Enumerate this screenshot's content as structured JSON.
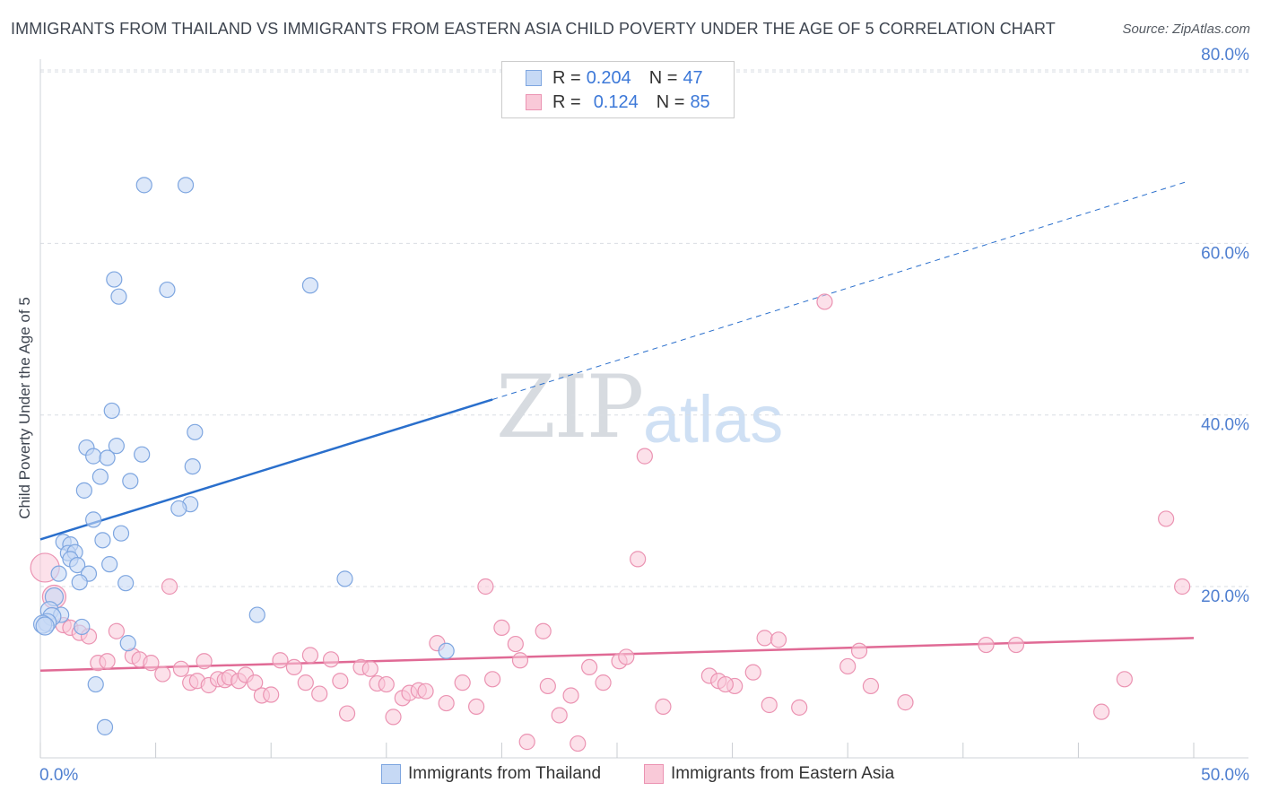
{
  "title": "IMMIGRANTS FROM THAILAND VS IMMIGRANTS FROM EASTERN ASIA CHILD POVERTY UNDER THE AGE OF 5 CORRELATION CHART",
  "source": "Source: ZipAtlas.com",
  "watermark": {
    "zip": "ZIP",
    "atlas": "atlas"
  },
  "legend": {
    "rows": [
      {
        "r_label": "R =",
        "r_value": "0.204",
        "n_label": "N =",
        "n_value": "47"
      },
      {
        "r_label": "R =",
        "r_value": "0.124",
        "n_label": "N =",
        "n_value": "85"
      }
    ]
  },
  "colors": {
    "thailand_fill": "#c6d9f5",
    "thailand_stroke": "#7ea6e0",
    "thailand_line": "#2a6fcc",
    "eastasia_fill": "#f9c9d8",
    "eastasia_stroke": "#eb93b2",
    "eastasia_line": "#e06a95",
    "tick": "#4f7fd0",
    "grid": "#d9dde3"
  },
  "chart_data": {
    "type": "scatter",
    "title": "IMMIGRANTS FROM THAILAND VS IMMIGRANTS FROM EASTERN ASIA CHILD POVERTY UNDER THE AGE OF 5 CORRELATION CHART",
    "xlabel": "",
    "ylabel": "Child Poverty Under the Age of 5",
    "xlim": [
      0,
      50
    ],
    "ylim": [
      0,
      82
    ],
    "x_tick_labels": [
      "0.0%",
      "50.0%"
    ],
    "y_ticks": [
      20,
      40,
      60,
      80
    ],
    "y_tick_labels": [
      "20.0%",
      "40.0%",
      "60.0%",
      "80.0%"
    ],
    "grid": true,
    "legend_position": "top-center",
    "series": [
      {
        "name": "Immigrants from Thailand",
        "r": 0.204,
        "n": 47,
        "trend": {
          "x_solid": [
            0,
            19.6
          ],
          "y_solid": [
            25.5,
            41.8
          ],
          "x_dashed": [
            19.6,
            49.7
          ],
          "y_dashed": [
            41.8,
            67.2
          ]
        },
        "points": [
          [
            4.5,
            66.8
          ],
          [
            6.3,
            66.8
          ],
          [
            3.2,
            55.8
          ],
          [
            3.4,
            53.8
          ],
          [
            5.5,
            54.6
          ],
          [
            11.7,
            55.1
          ],
          [
            3.1,
            40.5
          ],
          [
            6.7,
            38.0
          ],
          [
            2.0,
            36.2
          ],
          [
            3.3,
            36.4
          ],
          [
            2.3,
            35.2
          ],
          [
            2.9,
            35.0
          ],
          [
            4.4,
            35.4
          ],
          [
            6.6,
            34.0
          ],
          [
            2.6,
            32.8
          ],
          [
            3.9,
            32.3
          ],
          [
            1.9,
            31.2
          ],
          [
            6.5,
            29.6
          ],
          [
            6.0,
            29.1
          ],
          [
            2.3,
            27.8
          ],
          [
            3.5,
            26.2
          ],
          [
            2.7,
            25.4
          ],
          [
            1.0,
            25.2
          ],
          [
            1.3,
            24.9
          ],
          [
            1.2,
            23.9
          ],
          [
            1.5,
            24.0
          ],
          [
            1.3,
            23.2
          ],
          [
            1.6,
            22.5
          ],
          [
            3.0,
            22.6
          ],
          [
            0.8,
            21.5
          ],
          [
            2.1,
            21.5
          ],
          [
            1.7,
            20.5
          ],
          [
            3.7,
            20.4
          ],
          [
            13.2,
            20.9
          ],
          [
            0.6,
            18.8
          ],
          [
            0.4,
            17.2
          ],
          [
            0.9,
            16.7
          ],
          [
            0.5,
            16.5
          ],
          [
            0.3,
            15.8
          ],
          [
            9.4,
            16.7
          ],
          [
            0.1,
            15.6
          ],
          [
            0.2,
            15.4
          ],
          [
            1.8,
            15.3
          ],
          [
            3.8,
            13.4
          ],
          [
            17.6,
            12.5
          ],
          [
            2.4,
            8.6
          ],
          [
            2.8,
            3.6
          ]
        ]
      },
      {
        "name": "Immigrants from Eastern Asia",
        "r": 0.124,
        "n": 85,
        "trend": {
          "x": [
            0,
            50
          ],
          "y": [
            10.2,
            14.0
          ]
        },
        "points": [
          [
            0.2,
            22.2
          ],
          [
            0.6,
            18.8
          ],
          [
            1.0,
            15.5
          ],
          [
            1.3,
            15.2
          ],
          [
            1.7,
            14.6
          ],
          [
            2.1,
            14.2
          ],
          [
            3.3,
            14.8
          ],
          [
            2.5,
            11.1
          ],
          [
            2.9,
            11.3
          ],
          [
            4.0,
            11.9
          ],
          [
            4.3,
            11.5
          ],
          [
            4.8,
            11.1
          ],
          [
            5.3,
            9.8
          ],
          [
            5.6,
            20.0
          ],
          [
            6.1,
            10.4
          ],
          [
            6.5,
            8.8
          ],
          [
            6.8,
            9.0
          ],
          [
            7.1,
            11.3
          ],
          [
            7.3,
            8.5
          ],
          [
            7.7,
            9.2
          ],
          [
            8.0,
            9.1
          ],
          [
            8.2,
            9.4
          ],
          [
            8.6,
            9.0
          ],
          [
            8.9,
            9.7
          ],
          [
            9.3,
            8.8
          ],
          [
            9.6,
            7.3
          ],
          [
            10.0,
            7.4
          ],
          [
            10.4,
            11.4
          ],
          [
            11.0,
            10.6
          ],
          [
            11.5,
            8.8
          ],
          [
            11.7,
            12.0
          ],
          [
            12.1,
            7.5
          ],
          [
            12.6,
            11.5
          ],
          [
            13.0,
            9.0
          ],
          [
            13.3,
            5.2
          ],
          [
            13.9,
            10.6
          ],
          [
            14.3,
            10.4
          ],
          [
            14.6,
            8.7
          ],
          [
            15.0,
            8.6
          ],
          [
            15.3,
            4.8
          ],
          [
            15.7,
            7.0
          ],
          [
            16.0,
            7.6
          ],
          [
            16.4,
            7.9
          ],
          [
            16.7,
            7.8
          ],
          [
            17.2,
            13.4
          ],
          [
            17.6,
            6.4
          ],
          [
            18.3,
            8.8
          ],
          [
            18.9,
            6.0
          ],
          [
            19.3,
            20.0
          ],
          [
            19.6,
            9.2
          ],
          [
            20.0,
            15.2
          ],
          [
            20.6,
            13.3
          ],
          [
            20.8,
            11.4
          ],
          [
            21.1,
            1.9
          ],
          [
            21.8,
            14.8
          ],
          [
            22.0,
            8.4
          ],
          [
            22.5,
            5.0
          ],
          [
            23.0,
            7.3
          ],
          [
            23.3,
            1.7
          ],
          [
            23.8,
            10.6
          ],
          [
            24.4,
            8.8
          ],
          [
            25.1,
            11.3
          ],
          [
            25.4,
            11.8
          ],
          [
            25.9,
            23.2
          ],
          [
            26.2,
            35.2
          ],
          [
            27.0,
            6.0
          ],
          [
            29.0,
            9.6
          ],
          [
            29.4,
            9.0
          ],
          [
            30.1,
            8.4
          ],
          [
            29.7,
            8.6
          ],
          [
            30.9,
            10.0
          ],
          [
            31.4,
            14.0
          ],
          [
            31.6,
            6.2
          ],
          [
            32.0,
            13.8
          ],
          [
            32.9,
            5.9
          ],
          [
            34.0,
            53.2
          ],
          [
            35.0,
            10.7
          ],
          [
            35.5,
            12.5
          ],
          [
            36.0,
            8.4
          ],
          [
            37.5,
            6.5
          ],
          [
            41.0,
            13.2
          ],
          [
            42.3,
            13.2
          ],
          [
            46.0,
            5.4
          ],
          [
            47.0,
            9.2
          ],
          [
            48.8,
            27.9
          ],
          [
            49.5,
            20.0
          ]
        ]
      }
    ]
  }
}
